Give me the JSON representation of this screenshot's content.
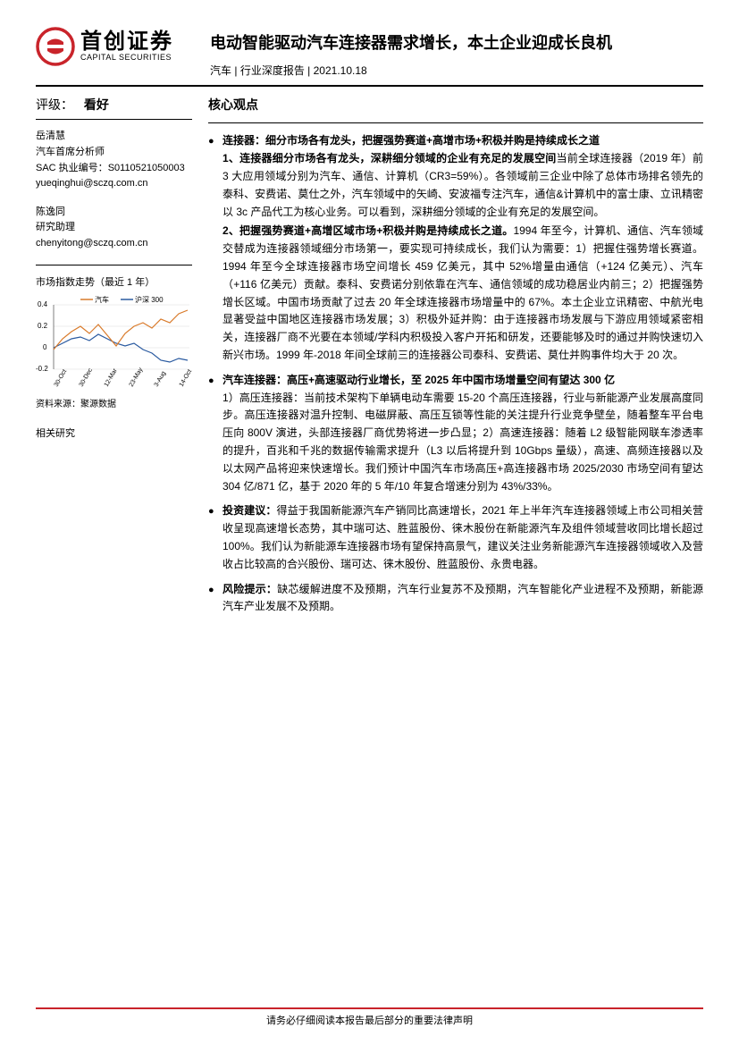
{
  "logo": {
    "cn": "首创证券",
    "en": "CAPITAL SECURITIES",
    "color": "#c9242b"
  },
  "title": "电动智能驱动汽车连接器需求增长，本土企业迎成长良机",
  "meta": {
    "category": "汽车",
    "report_type": "行业深度报告",
    "date": "2021.10.18"
  },
  "sidebar": {
    "rating_label": "评级：",
    "rating_value": "看好",
    "analysts": [
      {
        "name": "岳清慧",
        "role": "汽车首席分析师",
        "sac_label": "SAC 执业编号：",
        "sac": "S0110521050003",
        "email": "yueqinghui@sczq.com.cn"
      },
      {
        "name": "陈逸同",
        "role": "研究助理",
        "email": "chenyitong@sczq.com.cn"
      }
    ],
    "chart": {
      "label": "市场指数走势（最近 1 年）",
      "legend": [
        "汽车",
        "沪深 300"
      ],
      "legend_colors": [
        "#d97a2a",
        "#2a5aa0"
      ],
      "y_ticks": [
        "0.4",
        "0.2",
        "0",
        "-0.2"
      ],
      "x_ticks": [
        "30-Oct",
        "30-Dec",
        "12-Mar",
        "23-May",
        "3-Aug",
        "14-Oct"
      ],
      "series1_color": "#d97a2a",
      "series2_color": "#2a5aa0",
      "grid_color": "#cccccc",
      "source": "资料来源：聚源数据"
    },
    "related_label": "相关研究"
  },
  "main": {
    "heading": "核心观点",
    "bullets": [
      {
        "title": "连接器：细分市场各有龙头，把握强势赛道+高增市场+积极并购是持续成长之道",
        "paras": [
          {
            "bold": "1、连接器细分市场各有龙头，深耕细分领域的企业有充足的发展空间",
            "text": "当前全球连接器（2019 年）前 3 大应用领域分别为汽车、通信、计算机（CR3=59%）。各领域前三企业中除了总体市场排名领先的泰科、安费诺、莫仕之外，汽车领域中的矢崎、安波福专注汽车，通信&计算机中的富士康、立讯精密以 3c 产品代工为核心业务。可以看到，深耕细分领域的企业有充足的发展空间。"
          },
          {
            "bold": "2、把握强势赛道+高增区域市场+积极并购是持续成长之道。",
            "text": "1994 年至今，计算机、通信、汽车领域交替成为连接器领域细分市场第一，要实现可持续成长，我们认为需要：1）把握住强势增长赛道。1994 年至今全球连接器市场空间增长 459 亿美元，其中 52%增量由通信（+124 亿美元）、汽车（+116 亿美元）贡献。泰科、安费诺分别依靠在汽车、通信领域的成功稳居业内前三；2）把握强势增长区域。中国市场贡献了过去 20 年全球连接器市场增量中的 67%。本土企业立讯精密、中航光电显著受益中国地区连接器市场发展；3）积极外延并购：由于连接器市场发展与下游应用领域紧密相关，连接器厂商不光要在本领域/学科内积极投入客户开拓和研发，还要能够及时的通过并购快速切入新兴市场。1999 年-2018 年间全球前三的连接器公司泰科、安费诺、莫仕并购事件均大于 20 次。"
          }
        ]
      },
      {
        "title": "汽车连接器：高压+高速驱动行业增长，至 2025 年中国市场增量空间有望达 300 亿",
        "paras": [
          {
            "text": "1）高压连接器：当前技术架构下单辆电动车需要 15-20 个高压连接器，行业与新能源产业发展高度同步。高压连接器对温升控制、电磁屏蔽、高压互锁等性能的关注提升行业竞争壁垒，随着整车平台电压向 800V 演进，头部连接器厂商优势将进一步凸显；2）高速连接器：随着 L2 级智能网联车渗透率的提升，百兆和千兆的数据传输需求提升（L3 以后将提升到 10Gbps 量级），高速、高频连接器以及以太网产品将迎来快速增长。我们预计中国汽车市场高压+高连接器市场 2025/2030 市场空间有望达 304 亿/871 亿，基于 2020 年的 5 年/10 年复合增速分别为 43%/33%。"
          }
        ]
      },
      {
        "title": "投资建议：",
        "title_inline": true,
        "paras": [
          {
            "text": "得益于我国新能源汽车产销同比高速增长，2021 年上半年汽车连接器领域上市公司相关营收呈现高速增长态势，其中瑞可达、胜蓝股份、徕木股份在新能源汽车及组件领域营收同比增长超过 100%。我们认为新能源车连接器市场有望保持高景气，建议关注业务新能源汽车连接器领域收入及营收占比较高的合兴股份、瑞可达、徕木股份、胜蓝股份、永贵电器。"
          }
        ]
      },
      {
        "title": "风险提示：",
        "title_inline": true,
        "paras": [
          {
            "text": "缺芯缓解进度不及预期，汽车行业复苏不及预期，汽车智能化产业进程不及预期，新能源汽车产业发展不及预期。"
          }
        ]
      }
    ]
  },
  "footer": "请务必仔细阅读本报告最后部分的重要法律声明",
  "footer_color": "#c9242b"
}
